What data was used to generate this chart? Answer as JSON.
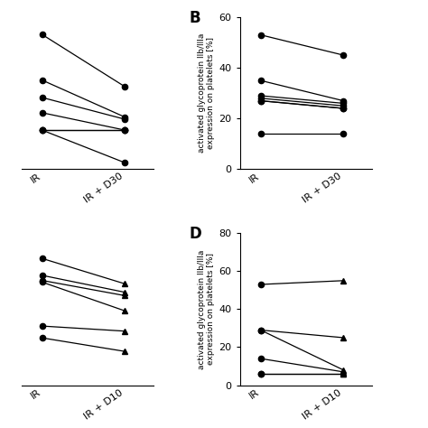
{
  "panel_A": {
    "ir": [
      62,
      41,
      33,
      26,
      18,
      18,
      18
    ],
    "ir_d30": [
      38,
      24,
      23,
      18,
      18,
      18,
      3
    ],
    "ylim": [
      0,
      70
    ],
    "yticks": [],
    "xlabel1": "IR",
    "xlabel2": "IR + D30"
  },
  "panel_B": {
    "label": "B",
    "ir": [
      53,
      35,
      29,
      28,
      27,
      27,
      14
    ],
    "ir_d30": [
      45,
      27,
      26,
      25,
      24,
      24,
      14
    ],
    "ylim": [
      0,
      60
    ],
    "yticks": [
      0,
      20,
      40,
      60
    ],
    "ylabel": "activated glycoprotein IIb/IIIa\nexpression on platelets [%]",
    "xlabel1": "IR",
    "xlabel2": "IR + D30"
  },
  "panel_C": {
    "ir": [
      75,
      65,
      62,
      61,
      35,
      28
    ],
    "ir_d10": [
      60,
      55,
      53,
      44,
      32,
      20
    ],
    "ylim": [
      0,
      90
    ],
    "yticks": [],
    "xlabel1": "IR",
    "xlabel2": "IR + D10"
  },
  "panel_D": {
    "label": "D",
    "ir": [
      53,
      29,
      29,
      14,
      6,
      6
    ],
    "ir_d10": [
      55,
      25,
      8,
      7,
      6,
      6
    ],
    "ylim": [
      0,
      80
    ],
    "yticks": [
      0,
      20,
      40,
      60,
      80
    ],
    "ylabel": "activated glycoprotein IIb/IIIa\nexpression on platelets [%]",
    "xlabel1": "IR",
    "xlabel2": "IR + D10"
  },
  "line_color": "#000000",
  "marker_color": "#000000",
  "fontsize_ylabel": 6.5,
  "fontsize_tick": 8,
  "fontsize_panel": 12
}
